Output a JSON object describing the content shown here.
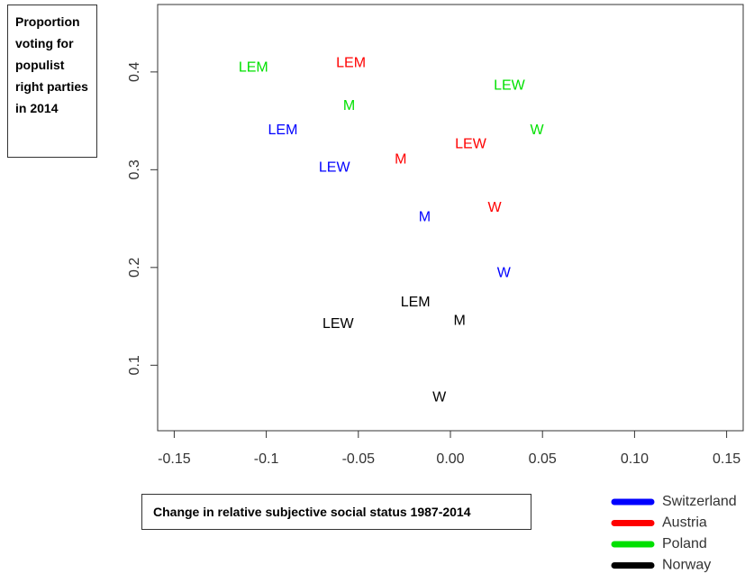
{
  "chart_data": {
    "type": "scatter",
    "x_label": "Change in relative subjective social status 1987-2014",
    "y_label": "Proportion voting for populist right parties in 2014",
    "xlim": [
      -0.159,
      0.159
    ],
    "ylim": [
      0.033,
      0.469
    ],
    "xticks": [
      -0.15,
      -0.1,
      -0.05,
      {
        "value": 0,
        "label": "0.00"
      },
      0.05,
      {
        "value": 0.1,
        "label": "0.10"
      },
      0.15
    ],
    "yticks": [
      0.1,
      0.2,
      0.3,
      0.4
    ],
    "legend": "bottom-right",
    "series": [
      {
        "name": "Switzerland",
        "color": "#0000ff",
        "labels": [
          "LEM",
          "LEW",
          "M",
          "W"
        ],
        "x": [
          -0.091,
          -0.063,
          -0.014,
          0.029
        ],
        "y": [
          0.34,
          0.302,
          0.251,
          0.194
        ]
      },
      {
        "name": "Austria",
        "color": "#ff0000",
        "labels": [
          "LEM",
          "M",
          "LEW",
          "W"
        ],
        "x": [
          -0.054,
          -0.027,
          0.011,
          0.024
        ],
        "y": [
          0.409,
          0.31,
          0.326,
          0.261
        ]
      },
      {
        "name": "Poland",
        "color": "#00e000",
        "labels": [
          "LEM",
          "M",
          "LEW",
          "W"
        ],
        "x": [
          -0.107,
          -0.055,
          0.032,
          0.047
        ],
        "y": [
          0.404,
          0.365,
          0.386,
          0.34
        ]
      },
      {
        "name": "Norway",
        "color": "#000000",
        "labels": [
          "LEM",
          "LEW",
          "M",
          "W"
        ],
        "x": [
          -0.019,
          -0.061,
          0.005,
          -0.006
        ],
        "y": [
          0.164,
          0.142,
          0.145,
          0.067
        ]
      }
    ]
  }
}
